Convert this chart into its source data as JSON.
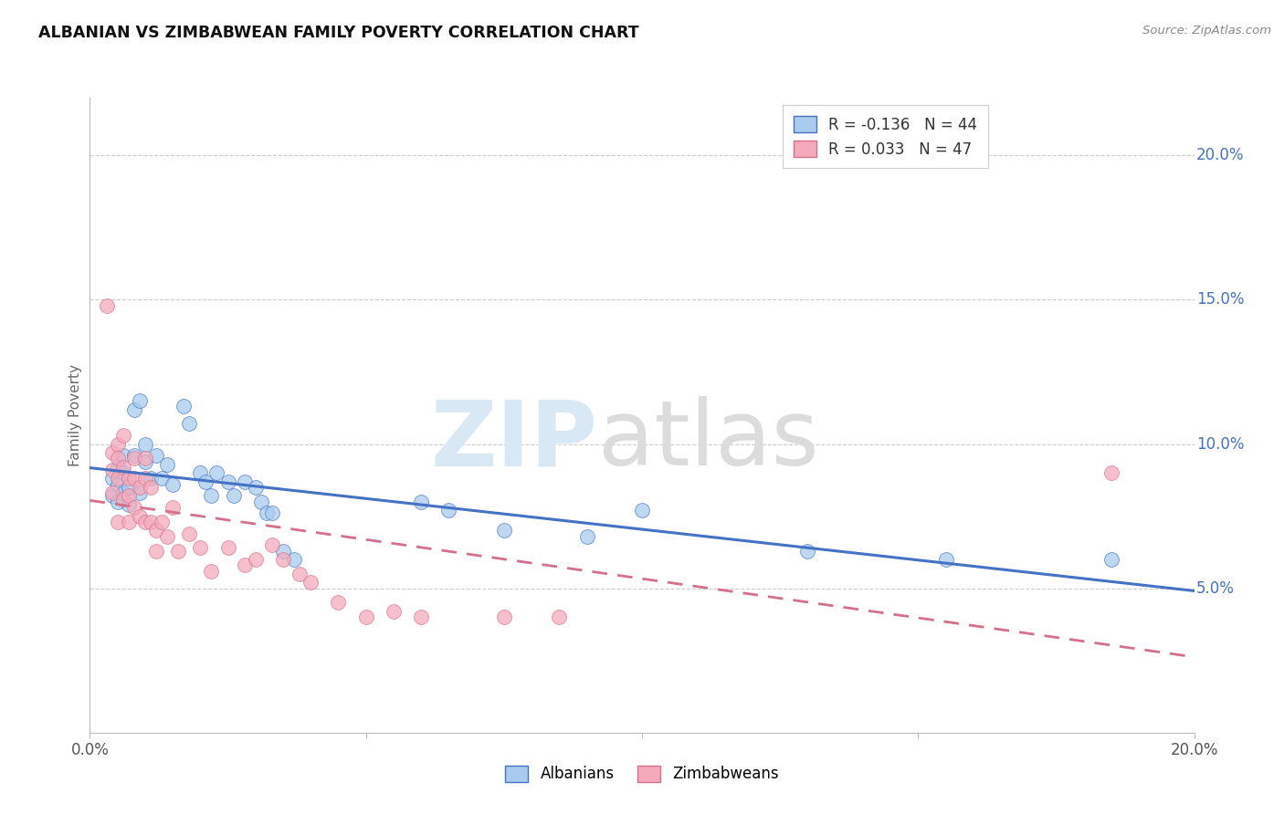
{
  "title": "ALBANIAN VS ZIMBABWEAN FAMILY POVERTY CORRELATION CHART",
  "source": "Source: ZipAtlas.com",
  "ylabel": "Family Poverty",
  "xlim": [
    0,
    0.2
  ],
  "ylim": [
    0,
    0.22
  ],
  "x_ticks": [
    0.0,
    0.05,
    0.1,
    0.15,
    0.2
  ],
  "x_tick_labels": [
    "0.0%",
    "",
    "",
    "",
    "20.0%"
  ],
  "y_ticks_right": [
    0.05,
    0.1,
    0.15,
    0.2
  ],
  "y_tick_labels_right": [
    "5.0%",
    "10.0%",
    "15.0%",
    "20.0%"
  ],
  "legend_r_albanian": "-0.136",
  "legend_n_albanian": "44",
  "legend_r_zimbabwean": "0.033",
  "legend_n_zimbabwean": "47",
  "color_albanian": "#A8CBEE",
  "color_zimbabwean": "#F4AABB",
  "color_albanian_line": "#4472C4",
  "color_zimbabwean_line": "#D4708A",
  "albanian_x": [
    0.004,
    0.004,
    0.005,
    0.005,
    0.005,
    0.006,
    0.006,
    0.006,
    0.007,
    0.007,
    0.008,
    0.008,
    0.009,
    0.009,
    0.01,
    0.01,
    0.011,
    0.012,
    0.013,
    0.014,
    0.015,
    0.017,
    0.018,
    0.02,
    0.021,
    0.022,
    0.023,
    0.025,
    0.026,
    0.028,
    0.03,
    0.031,
    0.032,
    0.033,
    0.035,
    0.037,
    0.06,
    0.065,
    0.075,
    0.09,
    0.1,
    0.13,
    0.155,
    0.185
  ],
  "albanian_y": [
    0.088,
    0.082,
    0.092,
    0.086,
    0.08,
    0.096,
    0.09,
    0.083,
    0.085,
    0.079,
    0.112,
    0.096,
    0.083,
    0.115,
    0.1,
    0.094,
    0.088,
    0.096,
    0.088,
    0.093,
    0.086,
    0.113,
    0.107,
    0.09,
    0.087,
    0.082,
    0.09,
    0.087,
    0.082,
    0.087,
    0.085,
    0.08,
    0.076,
    0.076,
    0.063,
    0.06,
    0.08,
    0.077,
    0.07,
    0.068,
    0.077,
    0.063,
    0.06,
    0.06
  ],
  "zimbabwean_x": [
    0.003,
    0.004,
    0.004,
    0.004,
    0.005,
    0.005,
    0.005,
    0.005,
    0.006,
    0.006,
    0.006,
    0.007,
    0.007,
    0.007,
    0.008,
    0.008,
    0.008,
    0.009,
    0.009,
    0.01,
    0.01,
    0.01,
    0.011,
    0.011,
    0.012,
    0.012,
    0.013,
    0.014,
    0.015,
    0.016,
    0.018,
    0.02,
    0.022,
    0.025,
    0.028,
    0.03,
    0.033,
    0.035,
    0.038,
    0.04,
    0.045,
    0.05,
    0.055,
    0.06,
    0.075,
    0.085,
    0.185
  ],
  "zimbabwean_y": [
    0.148,
    0.097,
    0.091,
    0.083,
    0.1,
    0.095,
    0.088,
    0.073,
    0.103,
    0.092,
    0.081,
    0.088,
    0.082,
    0.073,
    0.095,
    0.088,
    0.078,
    0.085,
    0.075,
    0.095,
    0.088,
    0.073,
    0.085,
    0.073,
    0.07,
    0.063,
    0.073,
    0.068,
    0.078,
    0.063,
    0.069,
    0.064,
    0.056,
    0.064,
    0.058,
    0.06,
    0.065,
    0.06,
    0.055,
    0.052,
    0.045,
    0.04,
    0.042,
    0.04,
    0.04,
    0.04,
    0.09
  ]
}
